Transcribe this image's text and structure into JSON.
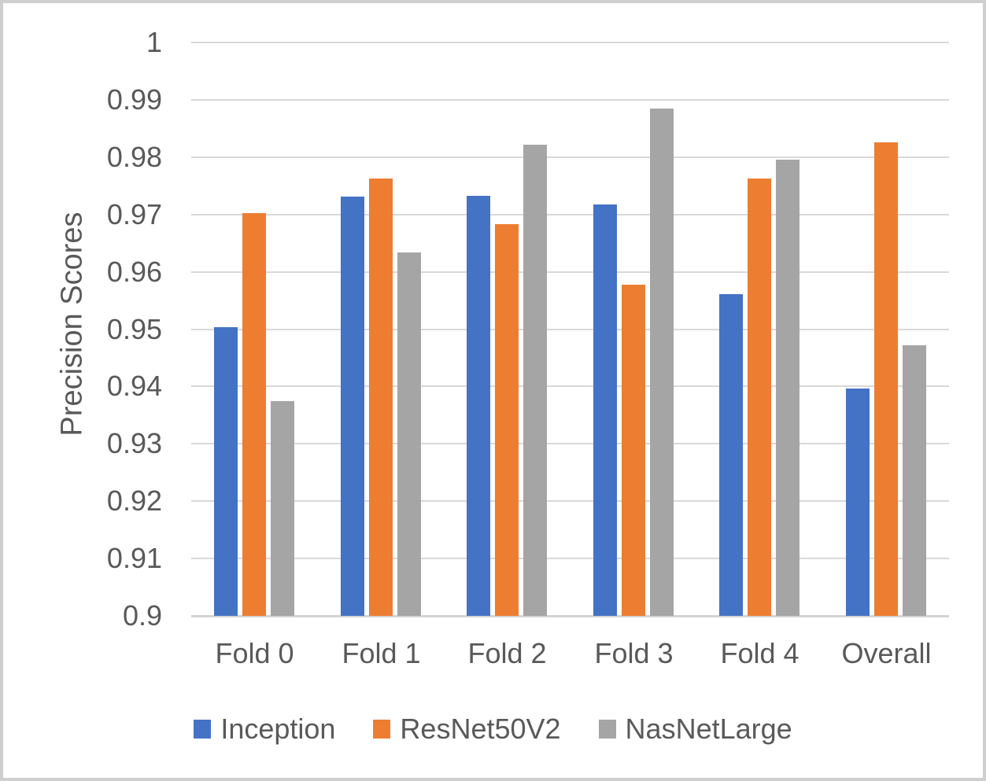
{
  "chart_data": {
    "type": "bar",
    "title": "",
    "xlabel": "",
    "ylabel": "Precision Scores",
    "categories": [
      "Fold 0",
      "Fold 1",
      "Fold 2",
      "Fold 3",
      "Fold 4",
      "Overall"
    ],
    "series": [
      {
        "name": "Inception",
        "color": "#4472C4",
        "values": [
          0.9504,
          0.9731,
          0.9733,
          0.9718,
          0.9561,
          0.9397
        ]
      },
      {
        "name": "ResNet50V2",
        "color": "#ED7D31",
        "values": [
          0.9702,
          0.9763,
          0.9683,
          0.9577,
          0.9763,
          0.9826
        ]
      },
      {
        "name": "NasNetLarge",
        "color": "#A5A5A5",
        "values": [
          0.9375,
          0.9634,
          0.9822,
          0.9885,
          0.9795,
          0.9472
        ]
      }
    ],
    "ylim": [
      0.9,
      1.0
    ],
    "ytick_step": 0.01,
    "ytick_labels": [
      "1",
      "0.99",
      "0.98",
      "0.97",
      "0.96",
      "0.95",
      "0.94",
      "0.93",
      "0.92",
      "0.91",
      "0.9"
    ],
    "grid": "horizontal",
    "gridline_color": "#D9D9D9",
    "text_color": "#595959",
    "legend_position": "bottom"
  }
}
